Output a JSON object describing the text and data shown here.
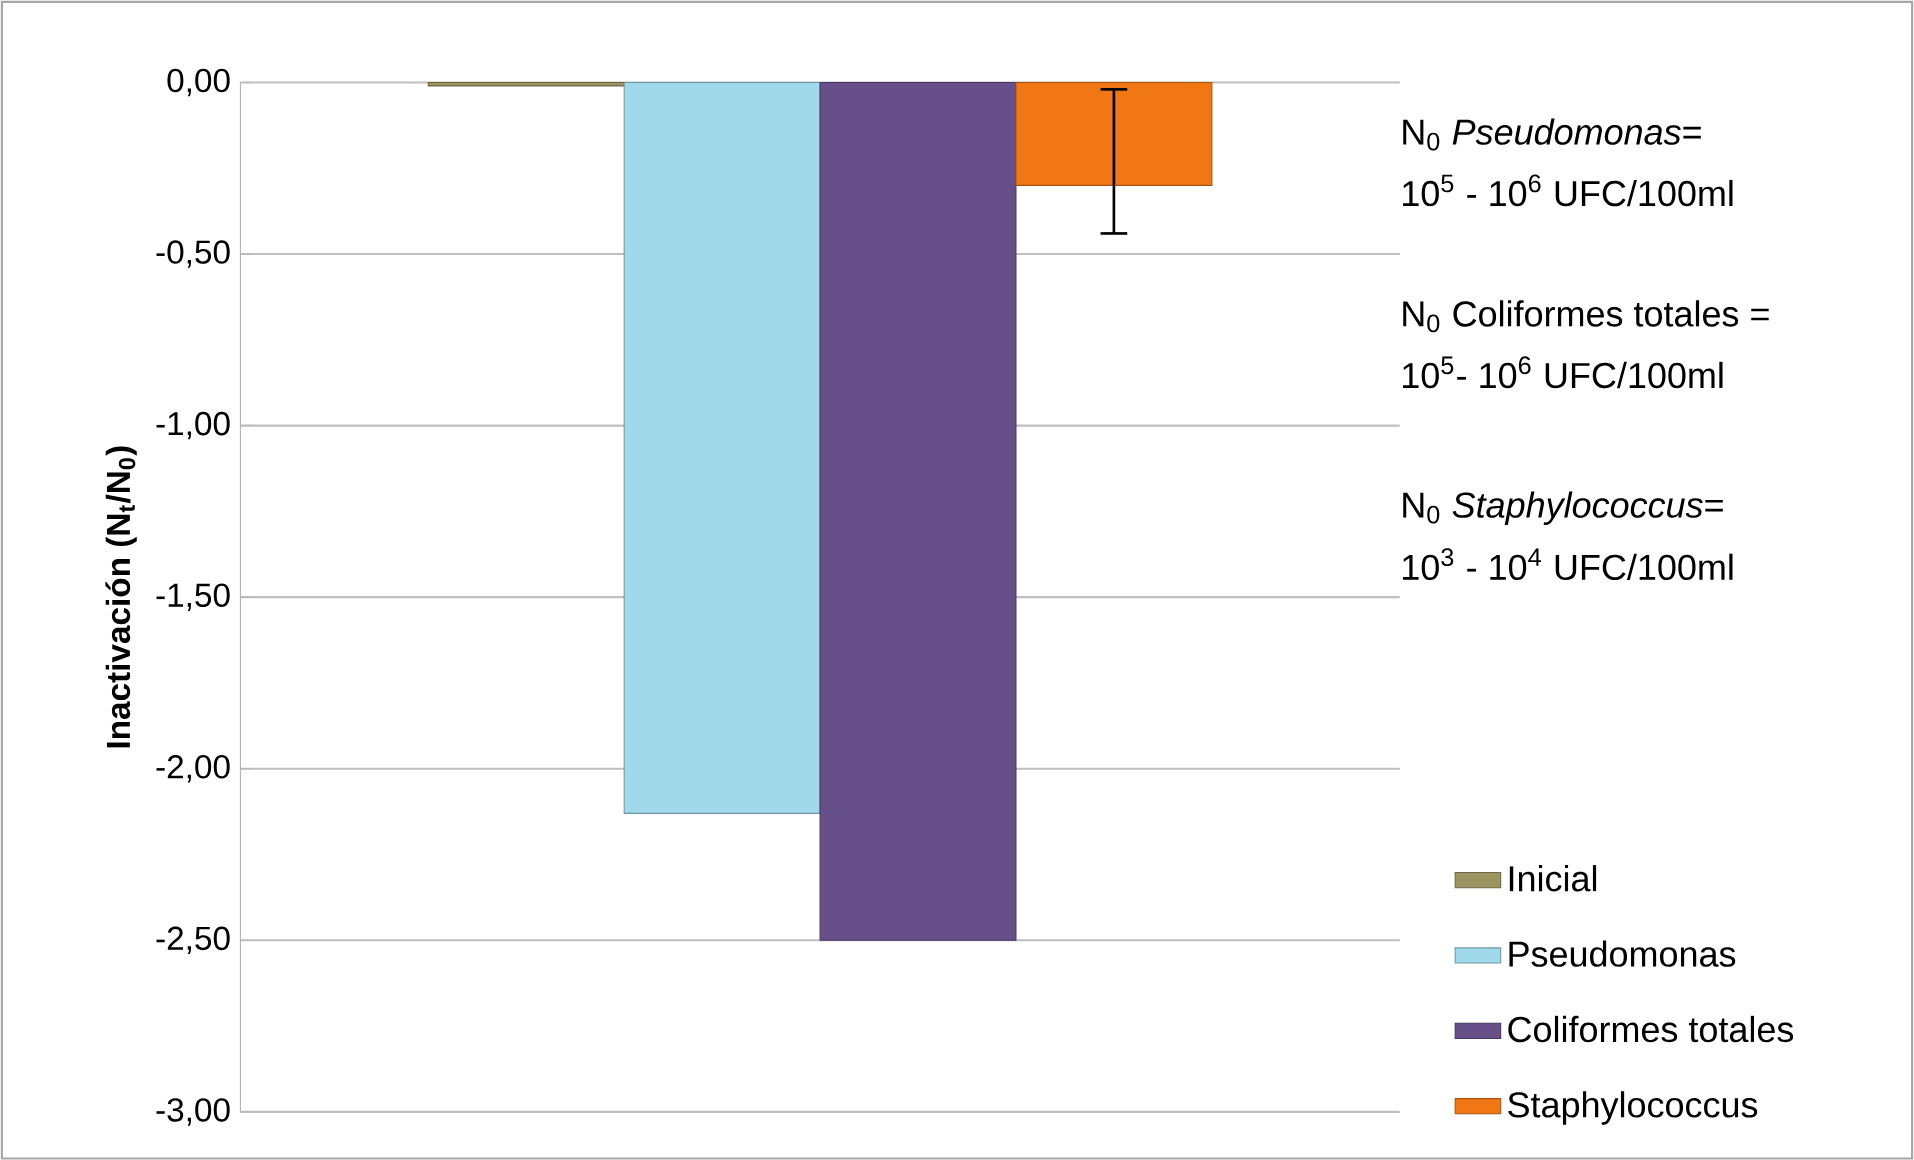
{
  "chart_data": {
    "type": "bar",
    "ylabel": "**Inactivación (N$_{t}$/N$_{0}$)**",
    "categories": [
      null
    ],
    "series": [
      {
        "name": "Inicial",
        "color": "#9c9461",
        "values": [
          -0.01
        ]
      },
      {
        "name": "Pseudomonas",
        "color": "#a0d9ea",
        "values": [
          -2.13
        ]
      },
      {
        "name": "Coliformes totales",
        "color": "#67508a",
        "values": [
          -2.5
        ]
      },
      {
        "name": "Staphylococcus",
        "color": "#f07714",
        "values": [
          -0.3
        ],
        "errors": [
          [
            -0.44,
            -0.02
          ]
        ]
      }
    ],
    "ylim": [
      -3,
      0
    ],
    "yticks": [
      {
        "value": 0,
        "label": "0,00"
      },
      {
        "value": -0.5,
        "label": "-0,50"
      },
      {
        "value": -1,
        "label": "-1,00"
      },
      {
        "value": -1.5,
        "label": "-1,50"
      },
      {
        "value": -2,
        "label": "-2,00"
      },
      {
        "value": -2.5,
        "label": "-2,50"
      },
      {
        "value": -3,
        "label": "-3,00"
      }
    ],
    "grid": "y",
    "legend": "right",
    "annotations": [
      "N$_{0}$ *Pseudomonas*=",
      "10$^{5}$ - 10$^{6}$ UFC/100ml",
      "N$_{0}$ Coliformes totales =",
      "10$^{5}$- 10$^{6}$ UFC/100ml",
      "N$_{0}$ *Staphylococcus*=",
      "10$^{3}$ - 10$^{4}$ UFC/100ml"
    ]
  }
}
